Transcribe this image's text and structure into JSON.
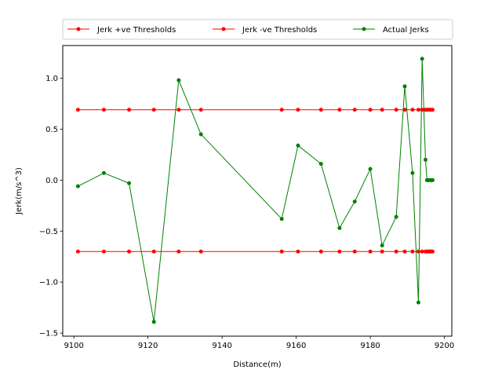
{
  "chart_data": {
    "type": "line",
    "title": "",
    "xlabel": "Distance(m)",
    "ylabel": "Jerk(m/s^3)",
    "xlim": [
      9097,
      9202
    ],
    "ylim": [
      -1.53,
      1.32
    ],
    "xticks": [
      9100,
      9120,
      9140,
      9160,
      9180,
      9200
    ],
    "yticks": [
      -1.5,
      -1.0,
      -0.5,
      0.0,
      0.5,
      1.0
    ],
    "ytick_labels": [
      "−1.5",
      "−1.0",
      "−0.5",
      "0.0",
      "0.5",
      "1.0"
    ],
    "grid": false,
    "legend_position": "top-center",
    "x": [
      9101.1,
      9108.1,
      9114.9,
      9121.6,
      9128.3,
      9134.3,
      9156.1,
      9160.5,
      9166.7,
      9171.7,
      9175.8,
      9180.0,
      9183.2,
      9187.0,
      9189.3,
      9191.4,
      9193.0,
      9194.0,
      9194.9,
      9195.3,
      9195.6,
      9195.9,
      9196.2,
      9196.5,
      9196.8
    ],
    "series": [
      {
        "name": "Jerk +ve Thresholds",
        "color": "#ff0000",
        "y": [
          0.69,
          0.69,
          0.69,
          0.69,
          0.69,
          0.69,
          0.69,
          0.69,
          0.69,
          0.69,
          0.69,
          0.69,
          0.69,
          0.69,
          0.69,
          0.69,
          0.69,
          0.69,
          0.69,
          0.69,
          0.69,
          0.69,
          0.69,
          0.69,
          0.69
        ]
      },
      {
        "name": "Jerk -ve Thresholds",
        "color": "#ff0000",
        "y": [
          -0.7,
          -0.7,
          -0.7,
          -0.7,
          -0.7,
          -0.7,
          -0.7,
          -0.7,
          -0.7,
          -0.7,
          -0.7,
          -0.7,
          -0.7,
          -0.7,
          -0.7,
          -0.7,
          -0.7,
          -0.7,
          -0.7,
          -0.7,
          -0.7,
          -0.7,
          -0.7,
          -0.7,
          -0.7
        ]
      },
      {
        "name": "Actual Jerks",
        "color": "#008000",
        "y": [
          -0.06,
          0.07,
          -0.03,
          -1.39,
          0.98,
          0.45,
          -0.38,
          0.34,
          0.16,
          -0.47,
          -0.21,
          0.11,
          -0.64,
          -0.36,
          0.92,
          0.07,
          -1.2,
          1.19,
          0.2,
          0.0,
          0.0,
          0.0,
          0.0,
          0.0,
          0.0
        ]
      }
    ]
  }
}
